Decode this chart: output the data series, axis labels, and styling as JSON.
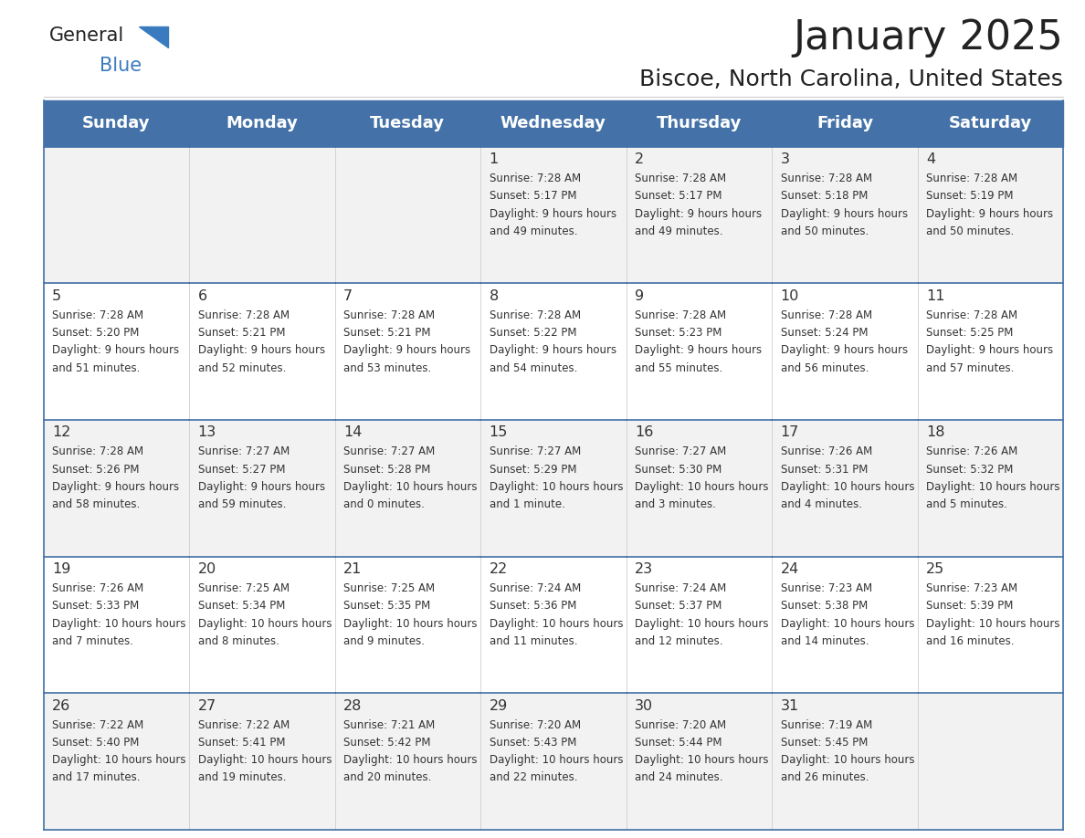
{
  "title": "January 2025",
  "subtitle": "Biscoe, North Carolina, United States",
  "days_of_week": [
    "Sunday",
    "Monday",
    "Tuesday",
    "Wednesday",
    "Thursday",
    "Friday",
    "Saturday"
  ],
  "header_bg": "#4472a8",
  "header_text_color": "#ffffff",
  "cell_bg_even": "#f2f2f2",
  "cell_bg_odd": "#ffffff",
  "border_color": "#4472a8",
  "text_color": "#333333",
  "title_color": "#222222",
  "logo_general_color": "#222222",
  "logo_blue_color": "#3a7bbf",
  "calendar_data": [
    [
      {
        "day": null,
        "sunrise": null,
        "sunset": null,
        "daylight": null
      },
      {
        "day": null,
        "sunrise": null,
        "sunset": null,
        "daylight": null
      },
      {
        "day": null,
        "sunrise": null,
        "sunset": null,
        "daylight": null
      },
      {
        "day": 1,
        "sunrise": "7:28 AM",
        "sunset": "5:17 PM",
        "daylight": "9 hours and 49 minutes."
      },
      {
        "day": 2,
        "sunrise": "7:28 AM",
        "sunset": "5:17 PM",
        "daylight": "9 hours and 49 minutes."
      },
      {
        "day": 3,
        "sunrise": "7:28 AM",
        "sunset": "5:18 PM",
        "daylight": "9 hours and 50 minutes."
      },
      {
        "day": 4,
        "sunrise": "7:28 AM",
        "sunset": "5:19 PM",
        "daylight": "9 hours and 50 minutes."
      }
    ],
    [
      {
        "day": 5,
        "sunrise": "7:28 AM",
        "sunset": "5:20 PM",
        "daylight": "9 hours and 51 minutes."
      },
      {
        "day": 6,
        "sunrise": "7:28 AM",
        "sunset": "5:21 PM",
        "daylight": "9 hours and 52 minutes."
      },
      {
        "day": 7,
        "sunrise": "7:28 AM",
        "sunset": "5:21 PM",
        "daylight": "9 hours and 53 minutes."
      },
      {
        "day": 8,
        "sunrise": "7:28 AM",
        "sunset": "5:22 PM",
        "daylight": "9 hours and 54 minutes."
      },
      {
        "day": 9,
        "sunrise": "7:28 AM",
        "sunset": "5:23 PM",
        "daylight": "9 hours and 55 minutes."
      },
      {
        "day": 10,
        "sunrise": "7:28 AM",
        "sunset": "5:24 PM",
        "daylight": "9 hours and 56 minutes."
      },
      {
        "day": 11,
        "sunrise": "7:28 AM",
        "sunset": "5:25 PM",
        "daylight": "9 hours and 57 minutes."
      }
    ],
    [
      {
        "day": 12,
        "sunrise": "7:28 AM",
        "sunset": "5:26 PM",
        "daylight": "9 hours and 58 minutes."
      },
      {
        "day": 13,
        "sunrise": "7:27 AM",
        "sunset": "5:27 PM",
        "daylight": "9 hours and 59 minutes."
      },
      {
        "day": 14,
        "sunrise": "7:27 AM",
        "sunset": "5:28 PM",
        "daylight": "10 hours and 0 minutes."
      },
      {
        "day": 15,
        "sunrise": "7:27 AM",
        "sunset": "5:29 PM",
        "daylight": "10 hours and 1 minute."
      },
      {
        "day": 16,
        "sunrise": "7:27 AM",
        "sunset": "5:30 PM",
        "daylight": "10 hours and 3 minutes."
      },
      {
        "day": 17,
        "sunrise": "7:26 AM",
        "sunset": "5:31 PM",
        "daylight": "10 hours and 4 minutes."
      },
      {
        "day": 18,
        "sunrise": "7:26 AM",
        "sunset": "5:32 PM",
        "daylight": "10 hours and 5 minutes."
      }
    ],
    [
      {
        "day": 19,
        "sunrise": "7:26 AM",
        "sunset": "5:33 PM",
        "daylight": "10 hours and 7 minutes."
      },
      {
        "day": 20,
        "sunrise": "7:25 AM",
        "sunset": "5:34 PM",
        "daylight": "10 hours and 8 minutes."
      },
      {
        "day": 21,
        "sunrise": "7:25 AM",
        "sunset": "5:35 PM",
        "daylight": "10 hours and 9 minutes."
      },
      {
        "day": 22,
        "sunrise": "7:24 AM",
        "sunset": "5:36 PM",
        "daylight": "10 hours and 11 minutes."
      },
      {
        "day": 23,
        "sunrise": "7:24 AM",
        "sunset": "5:37 PM",
        "daylight": "10 hours and 12 minutes."
      },
      {
        "day": 24,
        "sunrise": "7:23 AM",
        "sunset": "5:38 PM",
        "daylight": "10 hours and 14 minutes."
      },
      {
        "day": 25,
        "sunrise": "7:23 AM",
        "sunset": "5:39 PM",
        "daylight": "10 hours and 16 minutes."
      }
    ],
    [
      {
        "day": 26,
        "sunrise": "7:22 AM",
        "sunset": "5:40 PM",
        "daylight": "10 hours and 17 minutes."
      },
      {
        "day": 27,
        "sunrise": "7:22 AM",
        "sunset": "5:41 PM",
        "daylight": "10 hours and 19 minutes."
      },
      {
        "day": 28,
        "sunrise": "7:21 AM",
        "sunset": "5:42 PM",
        "daylight": "10 hours and 20 minutes."
      },
      {
        "day": 29,
        "sunrise": "7:20 AM",
        "sunset": "5:43 PM",
        "daylight": "10 hours and 22 minutes."
      },
      {
        "day": 30,
        "sunrise": "7:20 AM",
        "sunset": "5:44 PM",
        "daylight": "10 hours and 24 minutes."
      },
      {
        "day": 31,
        "sunrise": "7:19 AM",
        "sunset": "5:45 PM",
        "daylight": "10 hours and 26 minutes."
      },
      {
        "day": null,
        "sunrise": null,
        "sunset": null,
        "daylight": null
      }
    ]
  ]
}
